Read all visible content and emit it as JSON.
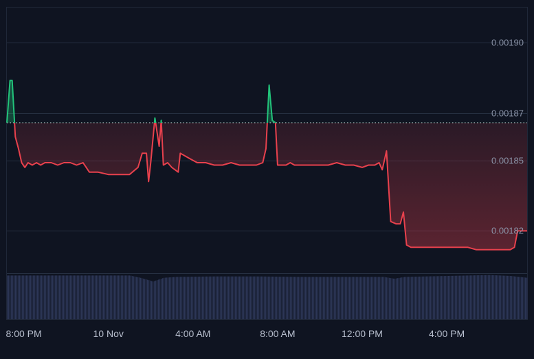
{
  "chart_data": {
    "type": "line",
    "grid": true,
    "baseline": 0.001866,
    "ylim": [
      0.001802,
      0.001915
    ],
    "yticks": [
      {
        "value": 0.0019,
        "label": "0.00190"
      },
      {
        "value": 0.00187,
        "label": "0.00187"
      },
      {
        "value": 0.00185,
        "label": "0.00185"
      },
      {
        "value": 0.00182,
        "label": "0.00182"
      }
    ],
    "xticks": [
      {
        "t": 1.0,
        "label": "8:00 PM"
      },
      {
        "t": 5.0,
        "label": "10 Nov"
      },
      {
        "t": 9.0,
        "label": "4:00 AM"
      },
      {
        "t": 13.0,
        "label": "8:00 AM"
      },
      {
        "t": 17.0,
        "label": "12:00 PM"
      },
      {
        "t": 21.0,
        "label": "4:00 PM"
      }
    ],
    "xlim": [
      0.2,
      24.8
    ],
    "colors": {
      "up": "#22c37a",
      "down": "#e8414d",
      "grid": "#263042",
      "tick_text": "#8b94a8",
      "volume": "#2c3656",
      "baseline": "#c8ccd6"
    },
    "series": [
      {
        "values": [
          [
            0.2,
            0.001866
          ],
          [
            0.35,
            0.001884
          ],
          [
            0.45,
            0.001884
          ],
          [
            0.6,
            0.00186
          ],
          [
            0.75,
            0.001855
          ],
          [
            0.9,
            0.001849
          ],
          [
            1.05,
            0.001847
          ],
          [
            1.2,
            0.001849
          ],
          [
            1.4,
            0.001848
          ],
          [
            1.6,
            0.001849
          ],
          [
            1.8,
            0.001848
          ],
          [
            2.0,
            0.001849
          ],
          [
            2.3,
            0.001849
          ],
          [
            2.6,
            0.001848
          ],
          [
            2.9,
            0.001849
          ],
          [
            3.2,
            0.001849
          ],
          [
            3.5,
            0.001848
          ],
          [
            3.8,
            0.001849
          ],
          [
            4.1,
            0.001845
          ],
          [
            4.5,
            0.001845
          ],
          [
            5.0,
            0.001844
          ],
          [
            5.5,
            0.001844
          ],
          [
            6.0,
            0.001844
          ],
          [
            6.4,
            0.001847
          ],
          [
            6.6,
            0.001853
          ],
          [
            6.8,
            0.001853
          ],
          [
            6.9,
            0.001841
          ],
          [
            7.0,
            0.001849
          ],
          [
            7.2,
            0.001868
          ],
          [
            7.4,
            0.001856
          ],
          [
            7.5,
            0.001867
          ],
          [
            7.6,
            0.001848
          ],
          [
            7.8,
            0.001849
          ],
          [
            8.0,
            0.001847
          ],
          [
            8.3,
            0.001845
          ],
          [
            8.4,
            0.001853
          ],
          [
            8.6,
            0.001852
          ],
          [
            8.8,
            0.001851
          ],
          [
            9.2,
            0.001849
          ],
          [
            9.6,
            0.001849
          ],
          [
            10.0,
            0.001848
          ],
          [
            10.4,
            0.001848
          ],
          [
            10.8,
            0.001849
          ],
          [
            11.2,
            0.001848
          ],
          [
            11.6,
            0.001848
          ],
          [
            12.0,
            0.001848
          ],
          [
            12.3,
            0.001849
          ],
          [
            12.45,
            0.001855
          ],
          [
            12.6,
            0.001882
          ],
          [
            12.75,
            0.001867
          ],
          [
            12.9,
            0.001866
          ],
          [
            13.0,
            0.001848
          ],
          [
            13.4,
            0.001848
          ],
          [
            13.6,
            0.001849
          ],
          [
            13.8,
            0.001848
          ],
          [
            14.2,
            0.001848
          ],
          [
            14.6,
            0.001848
          ],
          [
            15.0,
            0.001848
          ],
          [
            15.4,
            0.001848
          ],
          [
            15.8,
            0.001849
          ],
          [
            16.2,
            0.001848
          ],
          [
            16.6,
            0.001848
          ],
          [
            17.0,
            0.001847
          ],
          [
            17.3,
            0.001848
          ],
          [
            17.6,
            0.001848
          ],
          [
            17.8,
            0.001849
          ],
          [
            17.95,
            0.001846
          ],
          [
            18.15,
            0.001854
          ],
          [
            18.35,
            0.001824
          ],
          [
            18.6,
            0.001823
          ],
          [
            18.8,
            0.001823
          ],
          [
            18.95,
            0.001828
          ],
          [
            19.1,
            0.001814
          ],
          [
            19.3,
            0.001813
          ],
          [
            19.6,
            0.001813
          ],
          [
            20.0,
            0.001813
          ],
          [
            20.4,
            0.001813
          ],
          [
            20.8,
            0.001813
          ],
          [
            21.2,
            0.001813
          ],
          [
            21.6,
            0.001813
          ],
          [
            22.0,
            0.001813
          ],
          [
            22.4,
            0.001812
          ],
          [
            22.8,
            0.001812
          ],
          [
            23.2,
            0.001812
          ],
          [
            23.6,
            0.001812
          ],
          [
            24.0,
            0.001812
          ],
          [
            24.2,
            0.001813
          ],
          [
            24.35,
            0.00182
          ],
          [
            24.5,
            0.00182
          ],
          [
            24.8,
            0.00182
          ]
        ]
      }
    ],
    "volume_levels": [
      [
        0.2,
        0.95
      ],
      [
        2.0,
        0.95
      ],
      [
        4.0,
        0.95
      ],
      [
        6.0,
        0.95
      ],
      [
        6.5,
        0.9
      ],
      [
        7.1,
        0.82
      ],
      [
        7.6,
        0.9
      ],
      [
        8.2,
        0.92
      ],
      [
        10.0,
        0.93
      ],
      [
        12.0,
        0.93
      ],
      [
        14.0,
        0.92
      ],
      [
        16.0,
        0.92
      ],
      [
        18.0,
        0.92
      ],
      [
        18.5,
        0.88
      ],
      [
        19.0,
        0.92
      ],
      [
        21.0,
        0.94
      ],
      [
        23.0,
        0.96
      ],
      [
        24.0,
        0.94
      ],
      [
        24.8,
        0.9
      ]
    ]
  }
}
